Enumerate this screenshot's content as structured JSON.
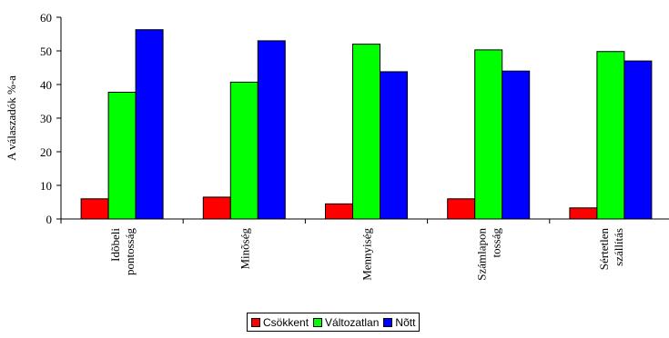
{
  "chart_data": {
    "type": "bar",
    "title": "",
    "xlabel": "",
    "ylabel": "A válaszadók %-a",
    "ylim": [
      0,
      60
    ],
    "yticks": [
      "0",
      "10",
      "20",
      "30",
      "40",
      "50",
      "60"
    ],
    "categories": [
      [
        "Idõbeli",
        "pontosság"
      ],
      [
        "Minõség"
      ],
      [
        "Mennyiség"
      ],
      [
        "Számlapon",
        "tosság"
      ],
      [
        "Sértetlen",
        "szállítás"
      ]
    ],
    "series": [
      {
        "name": "Csökkent",
        "color": "#ff0000",
        "values": [
          6,
          6.5,
          4.5,
          6,
          3.3
        ]
      },
      {
        "name": "Változatlan",
        "color": "#00ff00",
        "values": [
          37.7,
          40.7,
          52,
          50.3,
          49.8
        ]
      },
      {
        "name": "Nõtt",
        "color": "#0000ff",
        "values": [
          56.3,
          53,
          43.8,
          44,
          47
        ]
      }
    ],
    "grid": false,
    "legend_position": "bottom"
  }
}
